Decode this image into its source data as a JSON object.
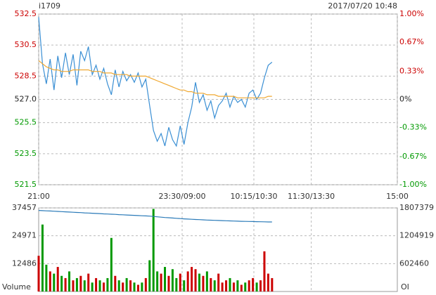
{
  "chart_data": [
    {
      "type": "line",
      "title": "i1709",
      "subtitle": "2017/07/20 10:48",
      "up_color": "#cc0000",
      "down_color": "#009900",
      "grid": true,
      "x": [
        0,
        4,
        8,
        12,
        16,
        20,
        24,
        28,
        32,
        36,
        40,
        44,
        48,
        52,
        56,
        60,
        64,
        68,
        72,
        76,
        80,
        84,
        88,
        92,
        96,
        100,
        104,
        108,
        112,
        116,
        120,
        124,
        128,
        132,
        136,
        140,
        144,
        148,
        152,
        156,
        160,
        164,
        168,
        172,
        176,
        180,
        184,
        188,
        192,
        196,
        200,
        204,
        208,
        212,
        216,
        220,
        224,
        228,
        232,
        236,
        240,
        244
      ],
      "xlim": [
        0,
        375
      ],
      "xticks": [
        {
          "value": 0,
          "label": "21:00"
        },
        {
          "value": 150,
          "label": "23:30/09:00"
        },
        {
          "value": 225,
          "label": "10:15/10:30"
        },
        {
          "value": 285,
          "label": "11:30/13:30"
        },
        {
          "value": 375,
          "label": "15:00"
        }
      ],
      "ylim": [
        521.5,
        532.5
      ],
      "yticks": [
        532.5,
        530.5,
        528.5,
        {
          "value": 527,
          "label": "527.0"
        },
        525.5,
        523.5,
        521.5
      ],
      "y2lim": [
        -1,
        1
      ],
      "y2ticks": [
        {
          "value": 1,
          "label": "1.00%"
        },
        {
          "value": 0.67,
          "label": "0.67%"
        },
        {
          "value": 0.33,
          "label": "0.33%"
        },
        {
          "value": 0,
          "label": "0%"
        },
        {
          "value": -0.33,
          "label": "-0.33%"
        },
        {
          "value": -0.67,
          "label": "-0.67%"
        },
        {
          "value": -1,
          "label": "-1.00%"
        }
      ],
      "series": [
        {
          "color": "#3a8fd4",
          "values": [
            532.3,
            529.3,
            528.0,
            529.6,
            527.6,
            529.8,
            528.4,
            530.0,
            528.6,
            529.9,
            527.9,
            530.1,
            529.5,
            530.4,
            528.6,
            529.2,
            528.3,
            529.0,
            528.0,
            527.3,
            528.9,
            527.8,
            528.8,
            528.2,
            528.6,
            528.1,
            528.7,
            527.8,
            528.3,
            526.6,
            525.0,
            524.3,
            524.8,
            524.0,
            525.2,
            524.4,
            524.0,
            525.3,
            524.1,
            525.5,
            526.5,
            528.1,
            526.8,
            527.3,
            526.3,
            526.9,
            525.8,
            526.6,
            526.9,
            527.4,
            526.5,
            527.2,
            526.8,
            527.0,
            526.5,
            527.4,
            527.6,
            527.0,
            527.4,
            528.4,
            529.2,
            529.4
          ]
        },
        {
          "color": "#f0a830",
          "values": [
            529.5,
            529.3,
            529.1,
            529.0,
            528.9,
            528.9,
            528.8,
            528.8,
            528.8,
            528.9,
            528.9,
            528.9,
            528.9,
            528.9,
            528.8,
            528.8,
            528.8,
            528.7,
            528.7,
            528.7,
            528.6,
            528.6,
            528.6,
            528.6,
            528.5,
            528.5,
            528.5,
            528.5,
            528.5,
            528.4,
            528.3,
            528.2,
            528.1,
            528.0,
            527.9,
            527.8,
            527.7,
            527.6,
            527.6,
            527.5,
            527.5,
            527.4,
            527.4,
            527.4,
            527.3,
            527.3,
            527.3,
            527.2,
            527.2,
            527.2,
            527.2,
            527.2,
            527.1,
            527.1,
            527.1,
            527.1,
            527.1,
            527.1,
            527.1,
            527.1,
            527.2,
            527.2
          ]
        }
      ]
    },
    {
      "type": "bar",
      "ylabel": "Volume",
      "y2label": "OI",
      "x": [
        0,
        4,
        8,
        12,
        16,
        20,
        24,
        28,
        32,
        36,
        40,
        44,
        48,
        52,
        56,
        60,
        64,
        68,
        72,
        76,
        80,
        84,
        88,
        92,
        96,
        100,
        104,
        108,
        112,
        116,
        120,
        124,
        128,
        132,
        136,
        140,
        144,
        148,
        152,
        156,
        160,
        164,
        168,
        172,
        176,
        180,
        184,
        188,
        192,
        196,
        200,
        204,
        208,
        212,
        216,
        220,
        224,
        228,
        232,
        236,
        240,
        244
      ],
      "ylim": [
        0,
        37457
      ],
      "yticks": [
        12486,
        24971,
        37457
      ],
      "y2lim": [
        0,
        1807379
      ],
      "y2ticks": [
        602460,
        1204919,
        1807379
      ],
      "series": [
        {
          "values": [
            16000,
            30000,
            12000,
            9000,
            8000,
            11000,
            7000,
            6000,
            9000,
            5000,
            6000,
            7000,
            5000,
            8000,
            4000,
            6000,
            5000,
            4000,
            6000,
            24000,
            7000,
            5000,
            4000,
            6000,
            5000,
            4000,
            3000,
            4000,
            6000,
            14000,
            37000,
            9000,
            8000,
            11000,
            7000,
            10000,
            6000,
            8000,
            5000,
            9000,
            11000,
            10000,
            8000,
            7000,
            9000,
            6000,
            5000,
            8000,
            4000,
            5000,
            6000,
            4000,
            5000,
            3000,
            4000,
            5000,
            6000,
            4000,
            5000,
            18000,
            8000,
            6000
          ]
        },
        {
          "axis": "y2",
          "color": "#2a7ab8",
          "values": [
            1752000,
            1748000,
            1744000,
            1740000,
            1736000,
            1731000,
            1727000,
            1722000,
            1718000,
            1713000,
            1709000,
            1705000,
            1700000,
            1696000,
            1692000,
            1688000,
            1684000,
            1679000,
            1675000,
            1671000,
            1667000,
            1662000,
            1658000,
            1654000,
            1650000,
            1646000,
            1642000,
            1638000,
            1634000,
            1630000,
            1622000,
            1614000,
            1607000,
            1600000,
            1594000,
            1588000,
            1582000,
            1576000,
            1571000,
            1566000,
            1561000,
            1557000,
            1553000,
            1549000,
            1545000,
            1541000,
            1538000,
            1535000,
            1532000,
            1529000,
            1526000,
            1523000,
            1520000,
            1518000,
            1516000,
            1514000,
            1512000,
            1510000,
            1508000,
            1506000,
            1504000,
            1503000
          ]
        }
      ]
    }
  ]
}
